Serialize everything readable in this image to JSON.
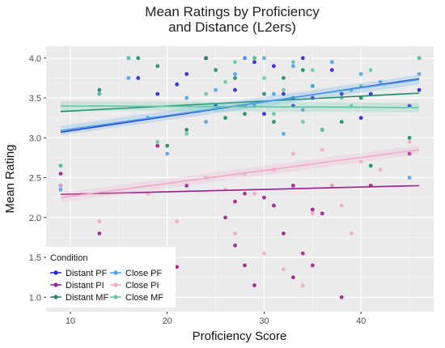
{
  "chart_data": {
    "type": "scatter",
    "title": "Mean Ratings by Proficiency",
    "subtitle": "and Distance (L2ers)",
    "xlabel": "Proficiency Score",
    "ylabel": "Mean Rating",
    "xlim": [
      7.5,
      47.5
    ],
    "ylim": [
      0.82,
      4.15
    ],
    "x_ticks": [
      10,
      20,
      30,
      40
    ],
    "y_ticks": [
      1.0,
      1.5,
      2.0,
      2.5,
      3.0,
      3.5,
      4.0
    ],
    "grid": true,
    "legend": {
      "title": "Condition",
      "position": "bottom-left"
    },
    "series": [
      {
        "name": "Distant PF",
        "color": "#2a1fd6",
        "trend": [
          [
            9,
            3.07
          ],
          [
            46,
            3.74
          ]
        ],
        "points": [
          [
            9,
            2.4
          ],
          [
            13,
            3.55
          ],
          [
            16,
            4.0
          ],
          [
            17,
            3.75
          ],
          [
            19,
            3.55
          ],
          [
            21,
            3.67
          ],
          [
            22,
            3.8
          ],
          [
            24,
            4.0
          ],
          [
            25,
            3.4
          ],
          [
            27,
            3.6
          ],
          [
            28,
            4.0
          ],
          [
            29,
            3.95
          ],
          [
            30,
            3.3
          ],
          [
            31,
            3.9
          ],
          [
            32,
            3.55
          ],
          [
            33,
            3.4
          ],
          [
            34,
            4.0
          ],
          [
            35,
            3.5
          ],
          [
            36,
            3.1
          ],
          [
            37,
            3.85
          ],
          [
            38,
            3.55
          ],
          [
            40,
            3.25
          ],
          [
            41,
            3.55
          ],
          [
            45,
            3.4
          ],
          [
            46,
            3.6
          ]
        ]
      },
      {
        "name": "Distant PI",
        "color": "#9b1f8a",
        "trend": [
          [
            9,
            2.29
          ],
          [
            46,
            2.4
          ]
        ],
        "points": [
          [
            9,
            2.55
          ],
          [
            13,
            1.8
          ],
          [
            19,
            2.9
          ],
          [
            21,
            1.38
          ],
          [
            22,
            2.4
          ],
          [
            26,
            2.0
          ],
          [
            27,
            2.2
          ],
          [
            27,
            1.65
          ],
          [
            28,
            2.3
          ],
          [
            28,
            1.4
          ],
          [
            29,
            1.15
          ],
          [
            30,
            2.25
          ],
          [
            31,
            2.15
          ],
          [
            32,
            1.8
          ],
          [
            33,
            2.4
          ],
          [
            33,
            1.25
          ],
          [
            34,
            1.55
          ],
          [
            35,
            2.1
          ],
          [
            35,
            1.4
          ],
          [
            36,
            2.05
          ],
          [
            37,
            2.4
          ],
          [
            38,
            1.0
          ],
          [
            41,
            2.4
          ],
          [
            45,
            2.8
          ]
        ]
      },
      {
        "name": "Distant MF",
        "color": "#1a8a63",
        "trend": [
          [
            9,
            3.33
          ],
          [
            46,
            3.56
          ]
        ],
        "points": [
          [
            9,
            2.65
          ],
          [
            13,
            3.6
          ],
          [
            17,
            4.0
          ],
          [
            19,
            3.9
          ],
          [
            20,
            2.9
          ],
          [
            22,
            3.1
          ],
          [
            24,
            4.0
          ],
          [
            25,
            3.85
          ],
          [
            26,
            3.25
          ],
          [
            27,
            3.75
          ],
          [
            28,
            3.3
          ],
          [
            29,
            4.0
          ],
          [
            30,
            3.55
          ],
          [
            31,
            3.2
          ],
          [
            32,
            3.75
          ],
          [
            33,
            3.5
          ],
          [
            34,
            3.85
          ],
          [
            35,
            3.65
          ],
          [
            36,
            3.1
          ],
          [
            38,
            3.2
          ],
          [
            40,
            3.5
          ],
          [
            41,
            2.65
          ],
          [
            45,
            3.0
          ],
          [
            46,
            4.0
          ]
        ]
      },
      {
        "name": "Close PF",
        "color": "#4aa3e8",
        "trend": [
          [
            9,
            3.09
          ],
          [
            46,
            3.73
          ]
        ],
        "points": [
          [
            9,
            2.35
          ],
          [
            16,
            3.75
          ],
          [
            18,
            3.25
          ],
          [
            20,
            2.8
          ],
          [
            22,
            3.5
          ],
          [
            24,
            3.2
          ],
          [
            25,
            3.6
          ],
          [
            27,
            3.8
          ],
          [
            28,
            4.0
          ],
          [
            29,
            3.4
          ],
          [
            30,
            4.0
          ],
          [
            31,
            3.55
          ],
          [
            32,
            3.05
          ],
          [
            33,
            3.9
          ],
          [
            34,
            3.35
          ],
          [
            35,
            3.65
          ],
          [
            37,
            3.95
          ],
          [
            39,
            3.6
          ],
          [
            40,
            3.8
          ],
          [
            42,
            3.7
          ],
          [
            45,
            2.5
          ],
          [
            46,
            3.8
          ]
        ]
      },
      {
        "name": "Close PI",
        "color": "#f0a8c8",
        "trend": [
          [
            9,
            2.25
          ],
          [
            46,
            2.85
          ]
        ],
        "points": [
          [
            9,
            2.4
          ],
          [
            13,
            1.95
          ],
          [
            18,
            2.3
          ],
          [
            21,
            1.95
          ],
          [
            24,
            2.5
          ],
          [
            26,
            2.35
          ],
          [
            27,
            1.8
          ],
          [
            28,
            2.55
          ],
          [
            29,
            2.3
          ],
          [
            30,
            1.55
          ],
          [
            31,
            2.6
          ],
          [
            32,
            1.35
          ],
          [
            33,
            2.8
          ],
          [
            34,
            1.15
          ],
          [
            35,
            2.05
          ],
          [
            36,
            2.85
          ],
          [
            37,
            2.4
          ],
          [
            38,
            2.15
          ],
          [
            39,
            1.8
          ],
          [
            40,
            2.7
          ],
          [
            42,
            2.6
          ],
          [
            45,
            2.95
          ]
        ]
      },
      {
        "name": "Close MF",
        "color": "#5fc9a8",
        "trend": [
          [
            9,
            3.4
          ],
          [
            46,
            3.38
          ]
        ],
        "points": [
          [
            9,
            2.65
          ],
          [
            13,
            3.55
          ],
          [
            16,
            4.0
          ],
          [
            19,
            2.95
          ],
          [
            22,
            3.05
          ],
          [
            24,
            3.55
          ],
          [
            26,
            3.7
          ],
          [
            27,
            3.95
          ],
          [
            28,
            3.4
          ],
          [
            29,
            4.0
          ],
          [
            30,
            3.75
          ],
          [
            31,
            3.3
          ],
          [
            32,
            3.6
          ],
          [
            33,
            3.95
          ],
          [
            34,
            3.2
          ],
          [
            35,
            3.85
          ],
          [
            36,
            3.1
          ],
          [
            38,
            3.5
          ],
          [
            39,
            3.4
          ],
          [
            40,
            3.65
          ],
          [
            41,
            3.85
          ],
          [
            46,
            4.0
          ]
        ]
      }
    ]
  }
}
